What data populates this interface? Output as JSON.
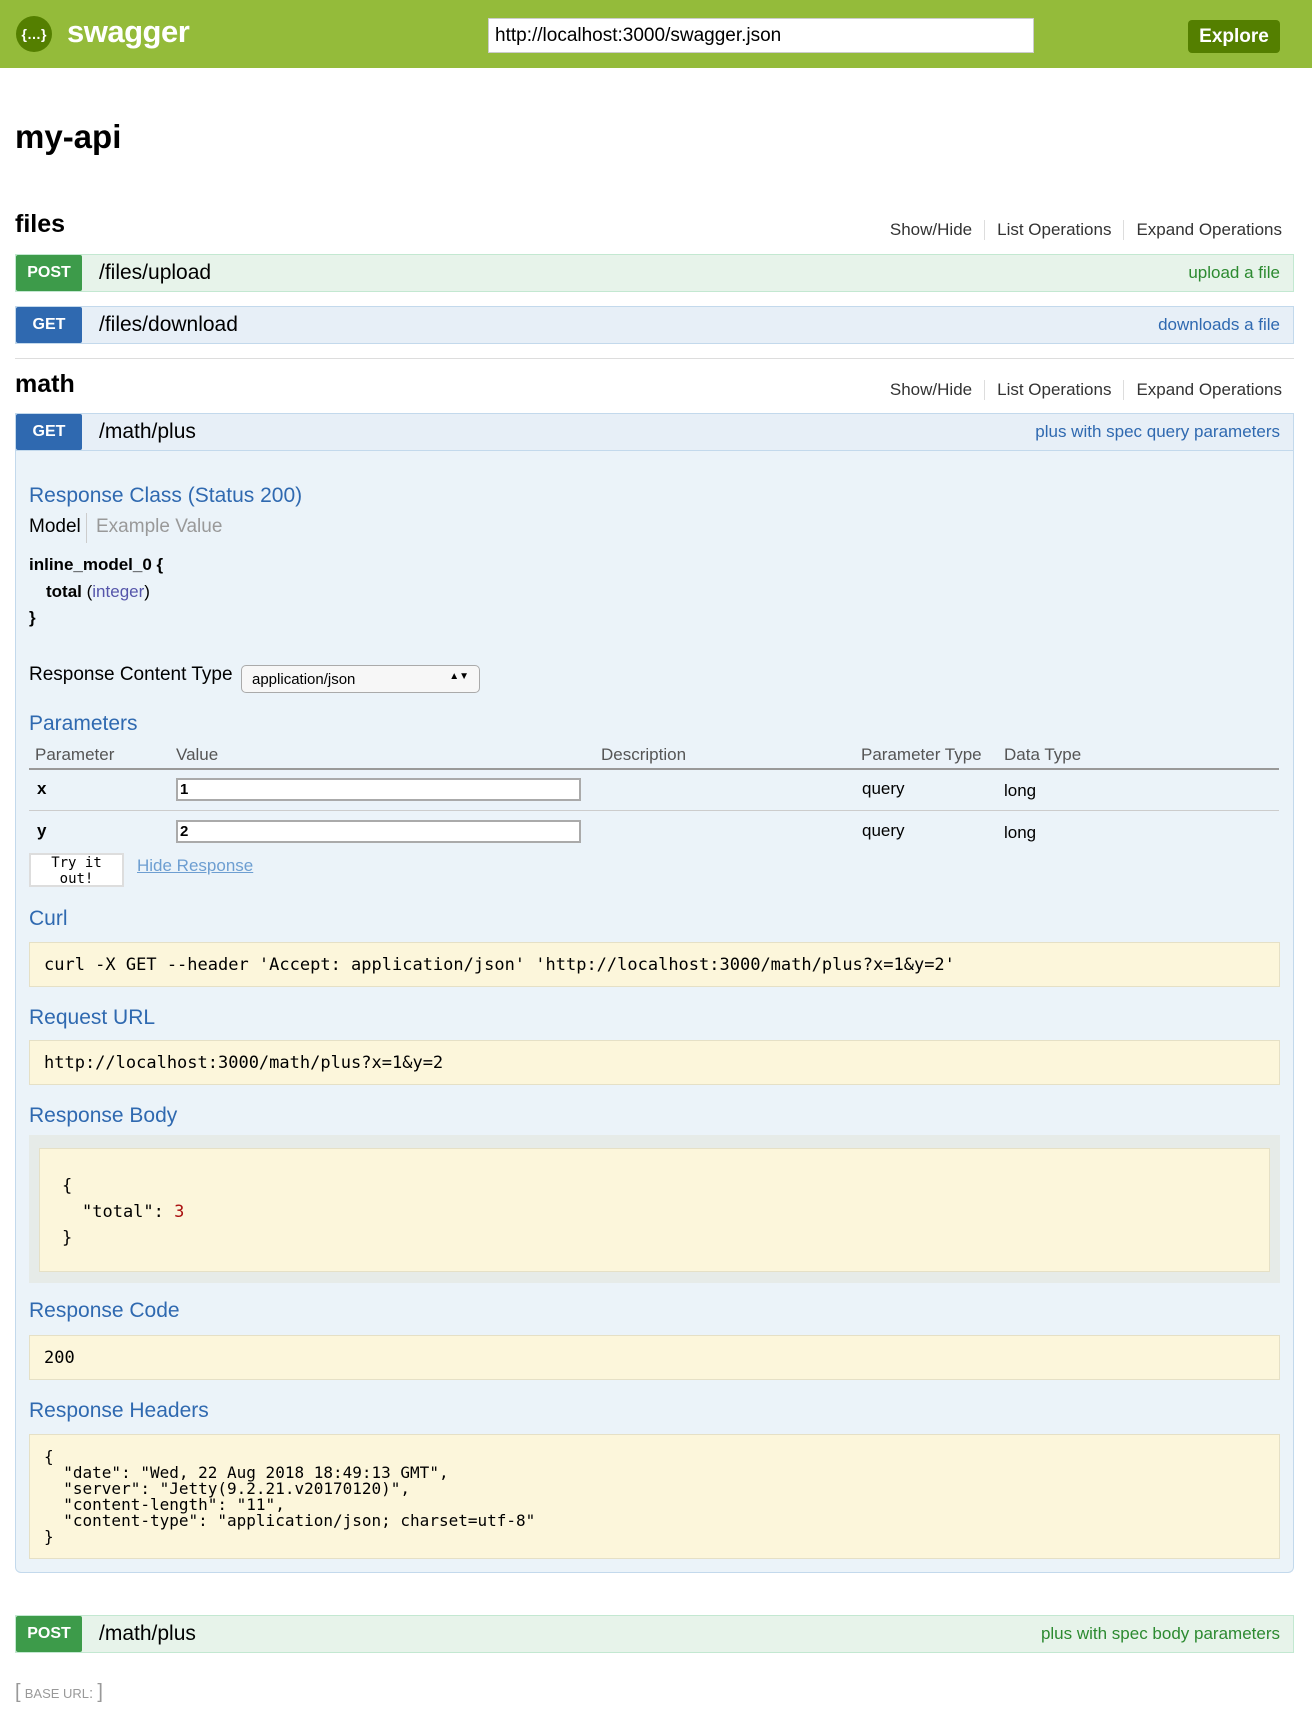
{
  "header": {
    "logo_text": "swagger",
    "logo_icon": "{…}",
    "url": "http://localhost:3000/swagger.json",
    "explore_label": "Explore"
  },
  "api_title": "my-api",
  "resource_links": {
    "show_hide": "Show/Hide",
    "list": "List Operations",
    "expand": "Expand Operations"
  },
  "resources": [
    {
      "name": "files",
      "operations": [
        {
          "method": "POST",
          "path": "/files/upload",
          "summary": "upload a file"
        },
        {
          "method": "GET",
          "path": "/files/download",
          "summary": "downloads a file"
        }
      ]
    },
    {
      "name": "math",
      "operations": [
        {
          "method": "GET",
          "path": "/math/plus",
          "summary": "plus with spec query parameters"
        },
        {
          "method": "POST",
          "path": "/math/plus",
          "summary": "plus with spec body parameters"
        }
      ]
    }
  ],
  "expanded": {
    "response_class": "Response Class (Status 200)",
    "model_tab": "Model",
    "example_tab": "Example Value",
    "model_name": "inline_model_0 {",
    "model_field": "total",
    "model_type_open": " (",
    "model_type": "integer",
    "model_type_close": ")",
    "model_close": "}",
    "content_type_label": "Response Content Type",
    "content_type_value": "application/json",
    "parameters_title": "Parameters",
    "param_headers": [
      "Parameter",
      "Value",
      "Description",
      "Parameter Type",
      "Data Type"
    ],
    "params": [
      {
        "name": "x",
        "value": "1",
        "param_type": "query",
        "data_type": "long"
      },
      {
        "name": "y",
        "value": "2",
        "param_type": "query",
        "data_type": "long"
      }
    ],
    "try_label": "Try it out!",
    "hide_response": "Hide Response",
    "curl_title": "Curl",
    "curl": "curl -X GET --header 'Accept: application/json' 'http://localhost:3000/math/plus?x=1&y=2'",
    "request_url_title": "Request URL",
    "request_url": "http://localhost:3000/math/plus?x=1&y=2",
    "response_body_title": "Response Body",
    "body_open": "{",
    "body_key": "\"total\": ",
    "body_value": "3",
    "body_close": "}",
    "response_code_title": "Response Code",
    "response_code": "200",
    "response_headers_title": "Response Headers",
    "response_headers": "{\n  \"date\": \"Wed, 22 Aug 2018 18:49:13 GMT\",\n  \"server\": \"Jetty(9.2.21.v20170120)\",\n  \"content-length\": \"11\",\n  \"content-type\": \"application/json; charset=utf-8\"\n}"
  },
  "footer": {
    "base_url_label": "BASE URL",
    "base_url_suffix": ": "
  },
  "colors": {
    "header": "#94bb3a",
    "post": "#3d9b4a",
    "get": "#2f69b0",
    "code_bg": "#fcf6db"
  }
}
